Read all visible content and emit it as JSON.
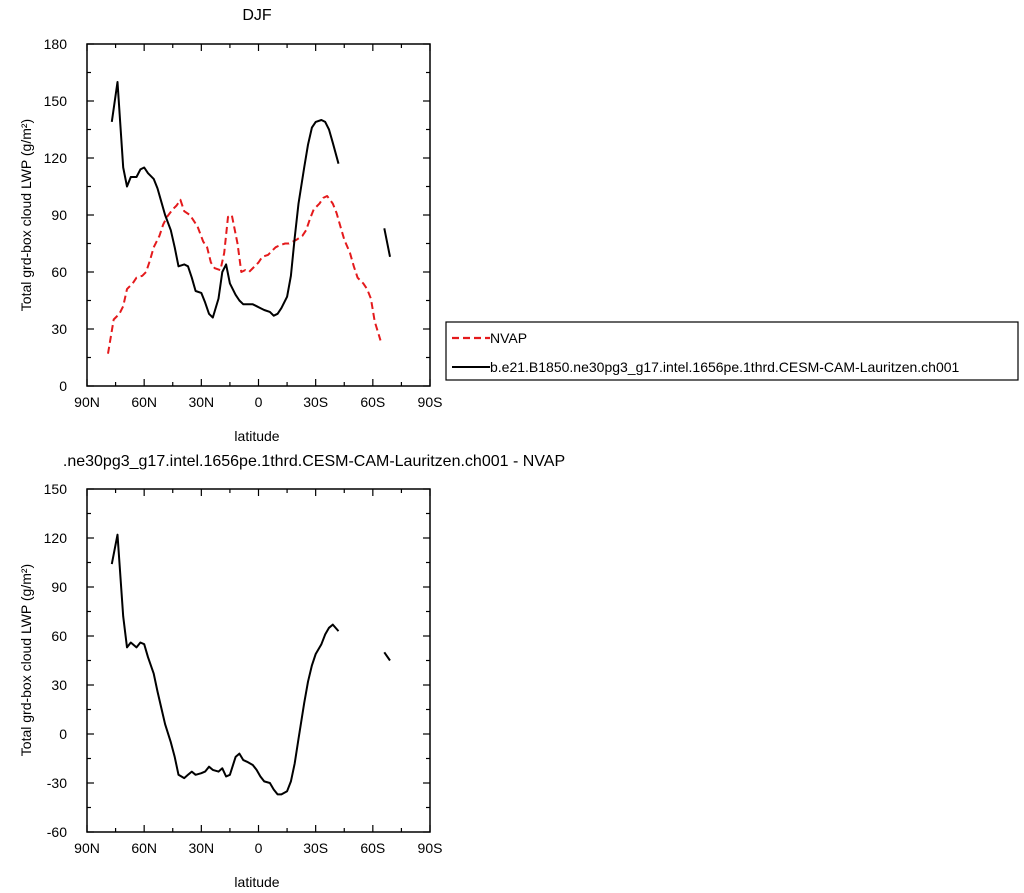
{
  "chart_data": [
    {
      "type": "line",
      "title": "DJF",
      "xlabel": "latitude",
      "ylabel": "Total grd-box cloud LWP (g/m²)",
      "xlim": [
        90,
        -90
      ],
      "ylim": [
        0,
        180
      ],
      "x_ticks": [
        90,
        60,
        30,
        0,
        -30,
        -60,
        -90
      ],
      "x_tick_labels": [
        "90N",
        "60N",
        "30N",
        "0",
        "30S",
        "60S",
        "90S"
      ],
      "y_ticks": [
        0,
        30,
        60,
        90,
        120,
        150,
        180
      ],
      "y_tick_labels": [
        "0",
        "30",
        "60",
        "90",
        "120",
        "150",
        "180"
      ],
      "legend_position": "right",
      "series": [
        {
          "name": "NVAP",
          "color": "#e41a1c",
          "dash": "dashed",
          "x": [
            79,
            76,
            73,
            71,
            69,
            66,
            64,
            61,
            59,
            57,
            55,
            52,
            50,
            48,
            45,
            43,
            41,
            39,
            36,
            34,
            32,
            29,
            27,
            25,
            23,
            20,
            18,
            16,
            14,
            11,
            9,
            7,
            5,
            2,
            0,
            -2,
            -5,
            -7,
            -9,
            -11,
            -14,
            -16,
            -18,
            -20,
            -23,
            -25,
            -27,
            -29,
            -32,
            -34,
            -36,
            -39,
            -41,
            -43,
            -45,
            -48,
            -50,
            -52,
            -55,
            -57,
            -59,
            -61,
            -64,
            -66,
            -69,
            -71,
            -73,
            -76,
            -78
          ],
          "values": [
            17,
            35,
            38,
            42,
            51,
            54,
            57,
            58,
            60,
            66,
            73,
            79,
            85,
            89,
            93,
            95,
            98,
            92,
            90,
            87,
            84,
            76,
            73,
            65,
            62,
            61,
            70,
            89,
            90,
            75,
            60,
            61,
            60,
            63,
            65,
            68,
            69,
            71,
            73,
            74,
            75,
            75,
            76,
            77,
            79,
            82,
            88,
            93,
            96,
            99,
            100,
            96,
            91,
            84,
            77,
            70,
            63,
            57,
            54,
            51,
            46,
            34,
            24,
            null,
            null,
            null,
            null,
            null,
            null
          ]
        },
        {
          "name": "b.e21.B1850.ne30pg3_g17.intel.1656pe.1thrd.CESM-CAM-Lauritzen.ch001",
          "color": "#000000",
          "dash": "solid",
          "x": [
            77,
            74,
            71,
            69,
            67,
            64,
            62,
            60,
            58,
            55,
            53,
            51,
            49,
            46,
            44,
            42,
            39,
            37,
            35,
            33,
            30,
            28,
            26,
            24,
            21,
            19,
            17,
            15,
            12,
            10,
            8,
            6,
            3,
            1,
            -1,
            -3,
            -6,
            -8,
            -10,
            -12,
            -15,
            -17,
            -19,
            -21,
            -24,
            -26,
            -28,
            -30,
            -33,
            -35,
            -37,
            -39,
            -42,
            -44,
            -46,
            -48,
            -51,
            -53,
            -55,
            -57,
            -60,
            -62,
            -64,
            -66,
            -69,
            -71,
            -73,
            -75,
            -77
          ],
          "values": [
            139,
            160,
            115,
            105,
            110,
            110,
            114,
            115,
            112,
            109,
            104,
            97,
            90,
            82,
            73,
            63,
            64,
            63,
            57,
            50,
            49,
            44,
            38,
            36,
            46,
            60,
            64,
            54,
            48,
            45,
            43,
            43,
            43,
            42,
            41,
            40,
            39,
            37,
            38,
            41,
            47,
            58,
            78,
            96,
            115,
            127,
            136,
            139,
            140,
            139,
            135,
            128,
            117,
            null,
            null,
            null,
            null,
            null,
            null,
            null,
            null,
            null,
            null,
            83,
            68,
            null,
            null,
            null,
            null
          ]
        }
      ]
    },
    {
      "type": "line",
      "title": ".ne30pg3_g17.intel.1656pe.1thrd.CESM-CAM-Lauritzen.ch001 - NVAP",
      "xlabel": "latitude",
      "ylabel": "Total grd-box cloud LWP (g/m²)",
      "xlim": [
        90,
        -90
      ],
      "ylim": [
        -60,
        150
      ],
      "x_ticks": [
        90,
        60,
        30,
        0,
        -30,
        -60,
        -90
      ],
      "x_tick_labels": [
        "90N",
        "60N",
        "30N",
        "0",
        "30S",
        "60S",
        "90S"
      ],
      "y_ticks": [
        -60,
        -30,
        0,
        30,
        60,
        90,
        120,
        150
      ],
      "y_tick_labels": [
        "-60",
        "-30",
        "0",
        "30",
        "60",
        "90",
        "120",
        "150"
      ],
      "series": [
        {
          "color": "#000000",
          "dash": "solid",
          "x": [
            77,
            74,
            71,
            69,
            67,
            64,
            62,
            60,
            58,
            55,
            53,
            51,
            49,
            46,
            44,
            42,
            39,
            37,
            35,
            33,
            30,
            28,
            26,
            24,
            21,
            19,
            17,
            15,
            12,
            10,
            8,
            6,
            3,
            1,
            -1,
            -3,
            -6,
            -8,
            -10,
            -12,
            -15,
            -17,
            -19,
            -21,
            -24,
            -26,
            -28,
            -30,
            -33,
            -35,
            -37,
            -39,
            -42,
            -44,
            -46,
            -48,
            -51,
            -53,
            -55,
            -57,
            -60,
            -62,
            -64,
            -66,
            -69,
            -71,
            -73,
            -75,
            -77
          ],
          "values": [
            104,
            122,
            72,
            53,
            56,
            53,
            56,
            55,
            47,
            37,
            26,
            16,
            6,
            -5,
            -14,
            -25,
            -27,
            -25,
            -23,
            -25,
            -24,
            -23,
            -20,
            -22,
            -23,
            -21,
            -26,
            -25,
            -14,
            -12,
            -16,
            -17,
            -19,
            -22,
            -26,
            -29,
            -30,
            -34,
            -37,
            -37,
            -35,
            -29,
            -18,
            -3,
            19,
            32,
            42,
            49,
            55,
            61,
            65,
            67,
            63,
            null,
            null,
            null,
            null,
            null,
            null,
            null,
            null,
            null,
            null,
            50,
            45,
            null,
            null,
            null,
            null
          ]
        }
      ]
    }
  ]
}
